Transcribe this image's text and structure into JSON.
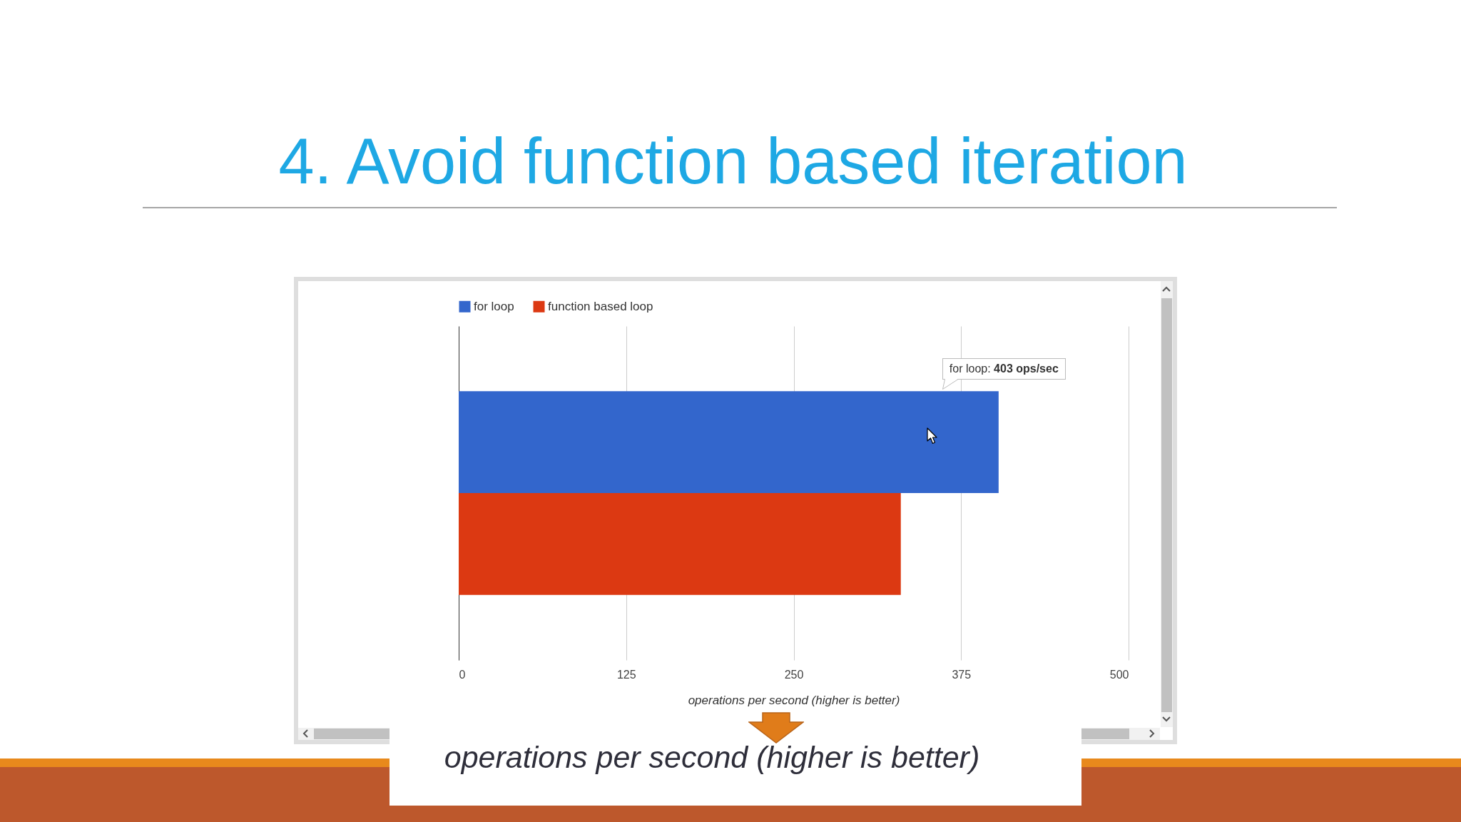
{
  "chart_data": {
    "type": "bar",
    "orientation": "horizontal",
    "title": "4. Avoid function based iteration",
    "xlabel": "operations per second (higher is better)",
    "categories": [
      null
    ],
    "series": [
      {
        "name": "for loop",
        "color": "#3366cc",
        "values": [
          403
        ]
      },
      {
        "name": "function based loop",
        "color": "#dc3912",
        "values": [
          330
        ]
      }
    ],
    "xlim": [
      0,
      500
    ],
    "xticks": [
      0,
      125,
      250,
      375,
      500
    ],
    "grid": "x",
    "legend": "top",
    "annotations": [
      "for loop: 403 ops/sec",
      "operations per second (higher is better)"
    ]
  }
}
